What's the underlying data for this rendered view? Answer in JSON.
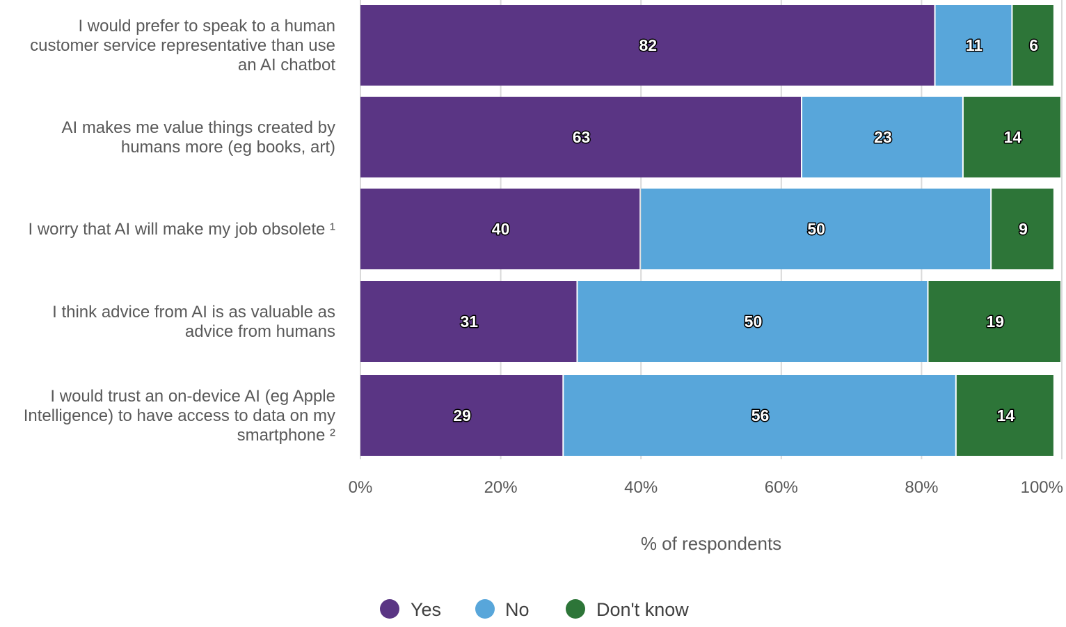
{
  "chart_data": {
    "type": "bar",
    "orientation": "horizontal",
    "stacked": true,
    "categories": [
      [
        "I would prefer to speak to a human",
        "customer service representative than use",
        "an AI chatbot"
      ],
      [
        "AI makes me value things created by",
        "humans more (eg books, art)"
      ],
      [
        "I worry that AI will make my job obsolete ¹"
      ],
      [
        "I think advice from AI is as valuable as",
        "advice from humans"
      ],
      [
        "I would trust an on-device AI (eg Apple",
        "Intelligence) to have access to data on my",
        "smartphone ²"
      ]
    ],
    "series": [
      {
        "name": "Yes",
        "color": "#5a3584",
        "values": [
          82,
          63,
          40,
          31,
          29
        ]
      },
      {
        "name": "No",
        "color": "#58a6da",
        "values": [
          11,
          23,
          50,
          50,
          56
        ]
      },
      {
        "name": "Don't know",
        "color": "#2d7538",
        "values": [
          6,
          14,
          9,
          19,
          14
        ]
      }
    ],
    "xlim": [
      0,
      100
    ],
    "xticks": [
      "0%",
      "20%",
      "40%",
      "60%",
      "80%",
      "100%"
    ],
    "xlabel": "% of respondents",
    "grid": true,
    "legend_position": "bottom"
  }
}
